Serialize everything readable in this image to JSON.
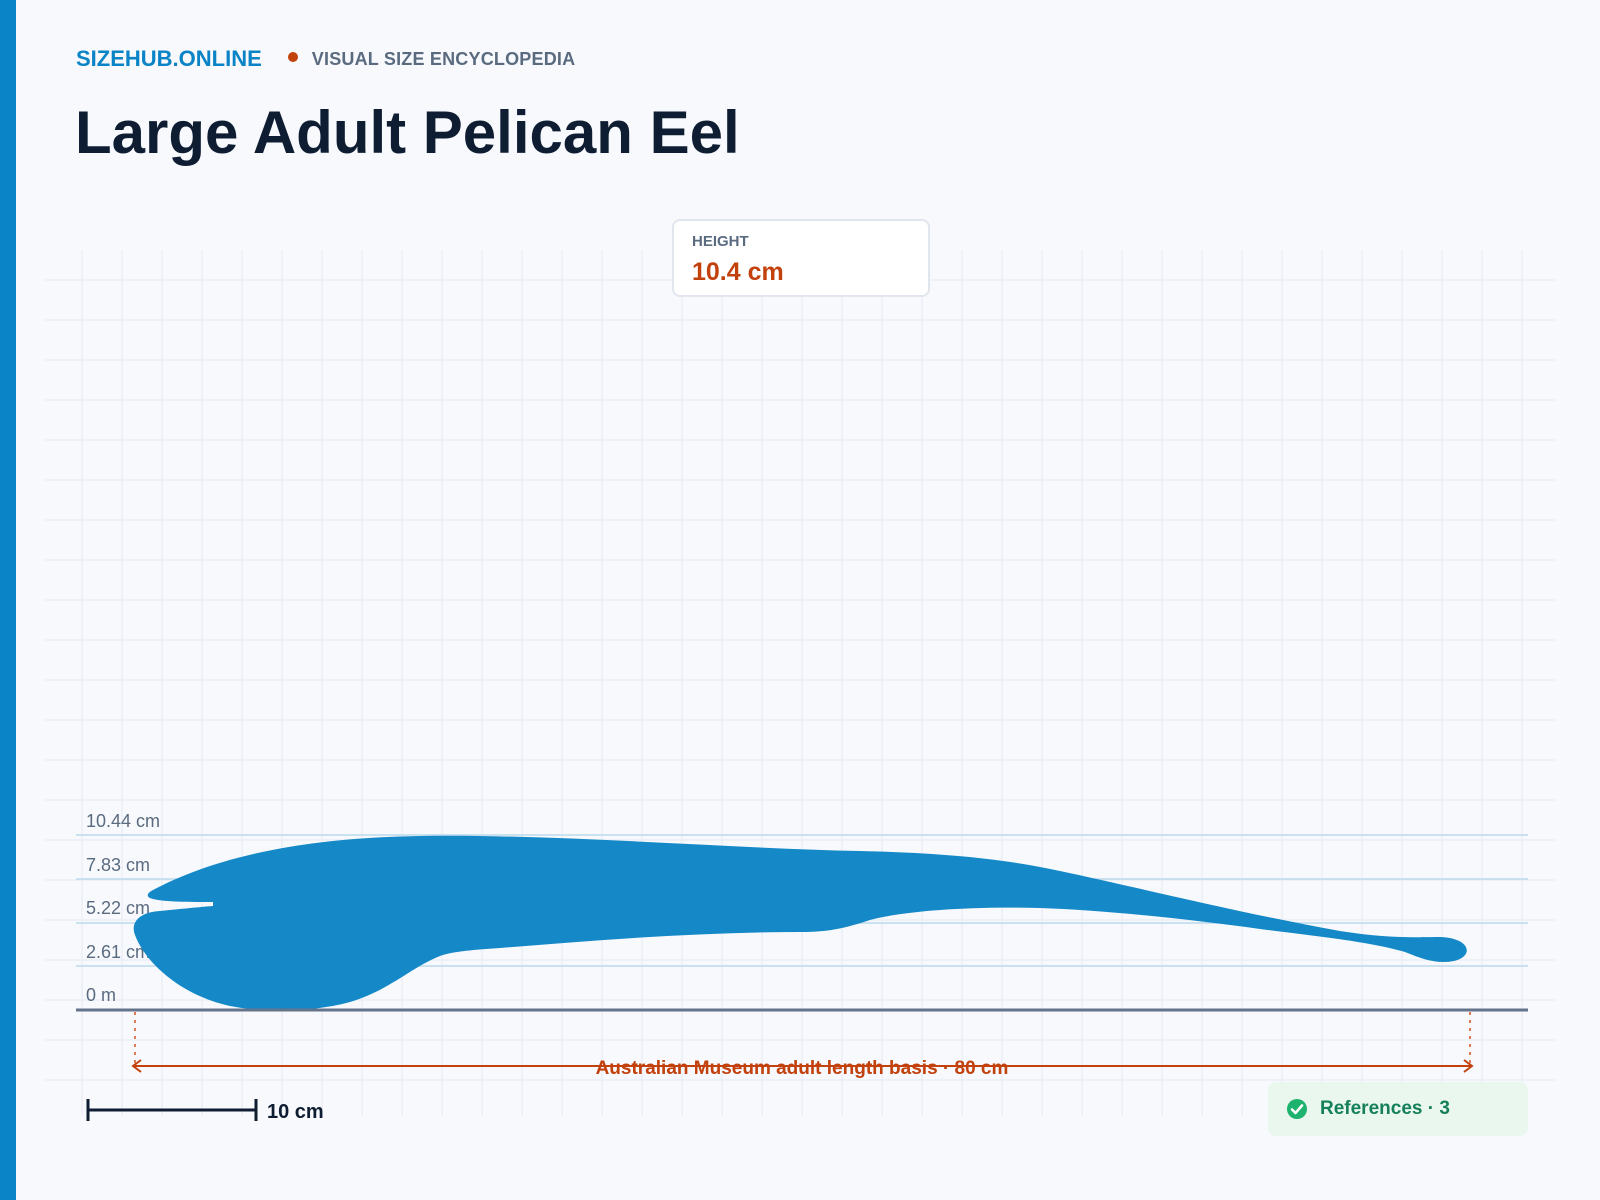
{
  "header": {
    "brand": "SIZEHUB.ONLINE",
    "tagline": "VISUAL SIZE ENCYCLOPEDIA",
    "title": "Large Adult Pelican Eel"
  },
  "height_card": {
    "label": "HEIGHT",
    "value": "10.4 cm"
  },
  "scale": {
    "unit_labels": [
      "10.44 cm",
      "7.83 cm",
      "5.22 cm",
      "2.61 cm",
      "0 m"
    ],
    "length_annotation": "Australian Museum adult length basis · 80 cm",
    "scale_bar_label": "10 cm"
  },
  "references": {
    "label": "References · 3",
    "icon": "check-circle-icon"
  },
  "colors": {
    "accent": "#0a84c6",
    "silhouette": "#1589c8",
    "measure": "#c2410c",
    "refs_bg": "#e9f7ef",
    "refs_text": "#15805a"
  }
}
